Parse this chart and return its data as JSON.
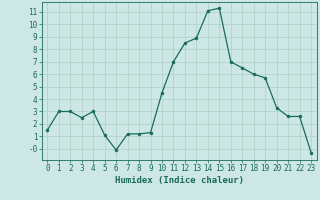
{
  "x": [
    0,
    1,
    2,
    3,
    4,
    5,
    6,
    7,
    8,
    9,
    10,
    11,
    12,
    13,
    14,
    15,
    16,
    17,
    18,
    19,
    20,
    21,
    22,
    23
  ],
  "y": [
    1.5,
    3.0,
    3.0,
    2.5,
    3.0,
    1.1,
    -0.1,
    1.2,
    1.2,
    1.3,
    4.5,
    7.0,
    8.5,
    8.9,
    11.1,
    11.3,
    7.0,
    6.5,
    6.0,
    5.7,
    3.3,
    2.6,
    2.6,
    -0.3
  ],
  "line_color": "#1a6b5a",
  "marker": "o",
  "marker_size": 2.0,
  "bg_color": "#cde8e4",
  "grid_color": "#b0cfc9",
  "xlabel": "Humidex (Indice chaleur)",
  "xlim": [
    -0.5,
    23.5
  ],
  "ylim": [
    -0.9,
    11.8
  ],
  "yticks": [
    0,
    1,
    2,
    3,
    4,
    5,
    6,
    7,
    8,
    9,
    10,
    11
  ],
  "ytick_labels": [
    "-0",
    "1",
    "2",
    "3",
    "4",
    "5",
    "6",
    "7",
    "8",
    "9",
    "10",
    "11"
  ],
  "xticks": [
    0,
    1,
    2,
    3,
    4,
    5,
    6,
    7,
    8,
    9,
    10,
    11,
    12,
    13,
    14,
    15,
    16,
    17,
    18,
    19,
    20,
    21,
    22,
    23
  ],
  "tick_fontsize": 5.5,
  "xlabel_fontsize": 6.5,
  "axis_color": "#1a6b5a",
  "linewidth": 0.9
}
